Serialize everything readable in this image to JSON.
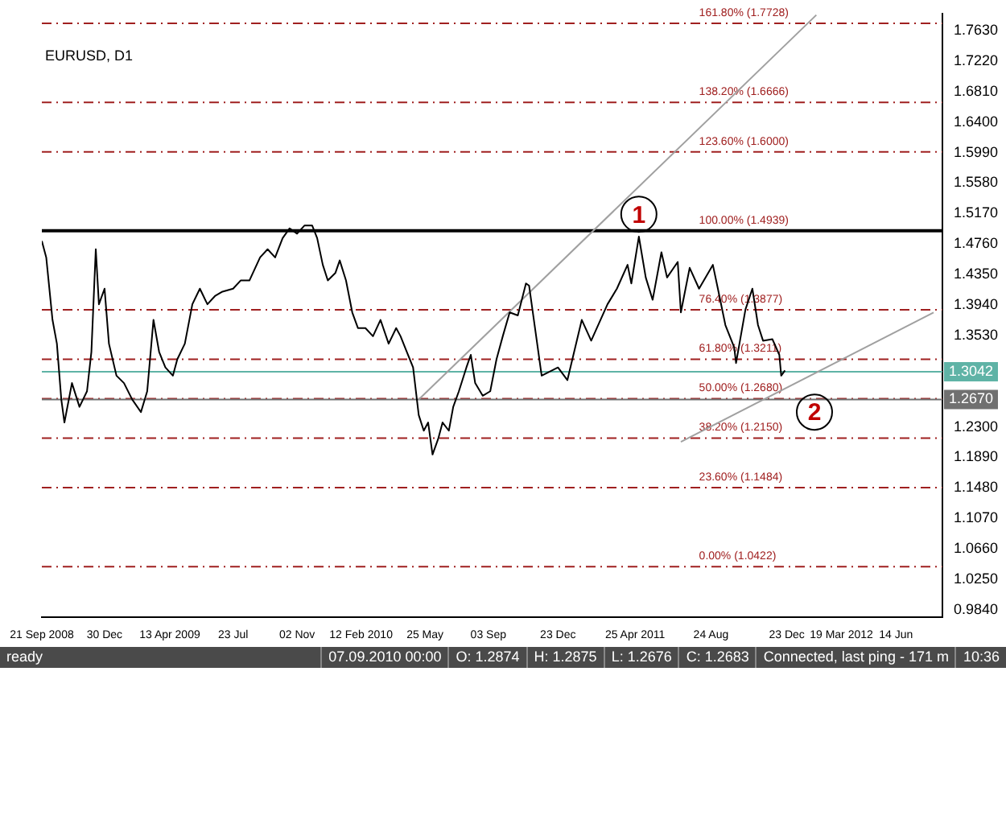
{
  "chart_data": {
    "type": "line",
    "title": "EURUSD, D1",
    "xlim": [
      "2008-09-21",
      "2012-08-27"
    ],
    "xticks": [
      {
        "value": "2008-09-21",
        "label": "21 Sep 2008"
      },
      {
        "value": "2008-12-30",
        "label": "30 Dec"
      },
      {
        "value": "2009-04-13",
        "label": "13 Apr 2009"
      },
      {
        "value": "2009-07-23",
        "label": "23 Jul"
      },
      {
        "value": "2009-11-02",
        "label": "02 Nov"
      },
      {
        "value": "2010-02-12",
        "label": "12 Feb 2010"
      },
      {
        "value": "2010-05-25",
        "label": "25 May"
      },
      {
        "value": "2010-09-03",
        "label": "03 Sep"
      },
      {
        "value": "2010-12-23",
        "label": "23 Dec"
      },
      {
        "value": "2011-04-25",
        "label": "25 Apr 2011"
      },
      {
        "value": "2011-08-24",
        "label": "24 Aug"
      },
      {
        "value": "2011-12-23",
        "label": "23 Dec"
      },
      {
        "value": "2012-03-19",
        "label": "19 Mar 2012"
      },
      {
        "value": "2012-06-14",
        "label": "14 Jun"
      }
    ],
    "ylim": [
      0.974,
      1.786
    ],
    "yticks": [
      {
        "value": 0.984,
        "label": "0.9840"
      },
      {
        "value": 1.025,
        "label": "1.0250"
      },
      {
        "value": 1.066,
        "label": "1.0660"
      },
      {
        "value": 1.107,
        "label": "1.1070"
      },
      {
        "value": 1.148,
        "label": "1.1480"
      },
      {
        "value": 1.189,
        "label": "1.1890"
      },
      {
        "value": 1.23,
        "label": "1.2300"
      },
      {
        "value": 1.353,
        "label": "1.3530"
      },
      {
        "value": 1.394,
        "label": "1.3940"
      },
      {
        "value": 1.435,
        "label": "1.4350"
      },
      {
        "value": 1.476,
        "label": "1.4760"
      },
      {
        "value": 1.517,
        "label": "1.5170"
      },
      {
        "value": 1.558,
        "label": "1.5580"
      },
      {
        "value": 1.599,
        "label": "1.5990"
      },
      {
        "value": 1.64,
        "label": "1.6400"
      },
      {
        "value": 1.681,
        "label": "1.6810"
      },
      {
        "value": 1.722,
        "label": "1.7220"
      },
      {
        "value": 1.763,
        "label": "1.7630"
      }
    ],
    "legend": false,
    "series": [
      {
        "type": "line",
        "color": "#000000",
        "x": [
          "2008-09-21",
          "2008-09-28",
          "2008-10-08",
          "2008-10-15",
          "2008-10-22",
          "2008-10-27",
          "2008-11-08",
          "2008-11-20",
          "2008-12-02",
          "2008-12-09",
          "2008-12-16",
          "2008-12-21",
          "2008-12-30",
          "2009-01-06",
          "2009-01-18",
          "2009-01-30",
          "2009-02-12",
          "2009-02-26",
          "2009-03-08",
          "2009-03-18",
          "2009-03-27",
          "2009-04-06",
          "2009-04-18",
          "2009-04-25",
          "2009-05-07",
          "2009-05-19",
          "2009-05-31",
          "2009-06-12",
          "2009-06-24",
          "2009-07-06",
          "2009-07-23",
          "2009-08-04",
          "2009-08-18",
          "2009-09-04",
          "2009-09-16",
          "2009-09-28",
          "2009-10-10",
          "2009-10-21",
          "2009-11-02",
          "2009-11-14",
          "2009-11-26",
          "2009-12-04",
          "2009-12-13",
          "2009-12-21",
          "2010-01-02",
          "2010-01-09",
          "2010-01-19",
          "2010-01-29",
          "2010-02-07",
          "2010-02-19",
          "2010-03-03",
          "2010-03-15",
          "2010-03-28",
          "2010-04-09",
          "2010-04-16",
          "2010-04-26",
          "2010-05-06",
          "2010-05-15",
          "2010-05-23",
          "2010-05-30",
          "2010-06-06",
          "2010-06-15",
          "2010-06-22",
          "2010-07-02",
          "2010-07-09",
          "2010-07-18",
          "2010-07-30",
          "2010-08-06",
          "2010-08-13",
          "2010-08-25",
          "2010-09-06",
          "2010-09-16",
          "2010-09-26",
          "2010-10-07",
          "2010-10-20",
          "2010-11-02",
          "2010-11-07",
          "2010-11-27",
          "2010-12-23",
          "2011-01-07",
          "2011-01-30",
          "2011-02-14",
          "2011-03-12",
          "2011-03-27",
          "2011-04-13",
          "2011-04-19",
          "2011-05-01",
          "2011-05-12",
          "2011-05-23",
          "2011-06-06",
          "2011-06-15",
          "2011-07-02",
          "2011-07-07",
          "2011-07-21",
          "2011-08-05",
          "2011-08-27",
          "2011-09-04",
          "2011-09-16",
          "2011-09-30",
          "2011-10-03",
          "2011-10-18",
          "2011-10-29",
          "2011-11-07",
          "2011-11-15",
          "2011-11-30",
          "2011-12-11",
          "2011-12-14",
          "2011-12-20"
        ],
        "values": [
          1.48,
          1.458,
          1.374,
          1.342,
          1.267,
          1.236,
          1.289,
          1.257,
          1.278,
          1.331,
          1.469,
          1.395,
          1.416,
          1.342,
          1.299,
          1.289,
          1.267,
          1.25,
          1.278,
          1.374,
          1.331,
          1.31,
          1.299,
          1.321,
          1.342,
          1.395,
          1.416,
          1.395,
          1.406,
          1.412,
          1.416,
          1.427,
          1.427,
          1.458,
          1.469,
          1.458,
          1.484,
          1.497,
          1.49,
          1.501,
          1.501,
          1.484,
          1.448,
          1.427,
          1.437,
          1.454,
          1.427,
          1.384,
          1.363,
          1.363,
          1.352,
          1.374,
          1.342,
          1.363,
          1.352,
          1.331,
          1.31,
          1.246,
          1.225,
          1.236,
          1.193,
          1.214,
          1.236,
          1.225,
          1.257,
          1.278,
          1.31,
          1.327,
          1.289,
          1.272,
          1.278,
          1.321,
          1.352,
          1.384,
          1.38,
          1.423,
          1.42,
          1.299,
          1.31,
          1.293,
          1.374,
          1.346,
          1.395,
          1.416,
          1.448,
          1.423,
          1.486,
          1.431,
          1.401,
          1.465,
          1.431,
          1.452,
          1.384,
          1.444,
          1.416,
          1.448,
          1.416,
          1.367,
          1.337,
          1.316,
          1.388,
          1.416,
          1.367,
          1.346,
          1.348,
          1.327,
          1.299,
          1.306
        ]
      },
      {
        "type": "line",
        "color": "#a0a0a0",
        "x": [
          "2010-05-15",
          "2012-02-08"
        ],
        "values": [
          1.267,
          1.784
        ]
      },
      {
        "type": "line",
        "color": "#a0a0a0",
        "x": [
          "2011-07-07",
          "2012-08-13"
        ],
        "values": [
          1.21,
          1.384
        ]
      }
    ],
    "ref_lines": [
      {
        "axis": "y",
        "value": 1.7728,
        "color": "#a02020",
        "line_style": "dashed"
      },
      {
        "axis": "y",
        "value": 1.6666,
        "color": "#a02020",
        "line_style": "dashed"
      },
      {
        "axis": "y",
        "value": 1.6,
        "color": "#a02020",
        "line_style": "dashed"
      },
      {
        "axis": "y",
        "value": 1.4939,
        "color": "#000000",
        "line_style": "solid"
      },
      {
        "axis": "y",
        "value": 1.3877,
        "color": "#a02020",
        "line_style": "dashed"
      },
      {
        "axis": "y",
        "value": 1.3211,
        "color": "#a02020",
        "line_style": "dashed"
      },
      {
        "axis": "y",
        "value": 1.268,
        "color": "#a02020",
        "line_style": "dashed"
      },
      {
        "axis": "y",
        "value": 1.215,
        "color": "#a02020",
        "line_style": "dashed"
      },
      {
        "axis": "y",
        "value": 1.1484,
        "color": "#a02020",
        "line_style": "dashed"
      },
      {
        "axis": "y",
        "value": 1.0422,
        "color": "#a02020",
        "line_style": "dashed"
      },
      {
        "axis": "y",
        "value": 1.3042,
        "label": "1.3042",
        "color": "#5fb3a6",
        "line_style": "solid"
      },
      {
        "axis": "y",
        "value": 1.267,
        "label": "1.2670",
        "color": "#707070",
        "line_style": "solid"
      }
    ],
    "annotations": [
      {
        "text": "161.80% (1.7728)",
        "x": "2011-08-05",
        "y": 1.7728
      },
      {
        "text": "138.20% (1.6666)",
        "x": "2011-08-05",
        "y": 1.6666
      },
      {
        "text": "123.60% (1.6000)",
        "x": "2011-08-05",
        "y": 1.6
      },
      {
        "text": "100.00% (1.4939)",
        "x": "2011-08-05",
        "y": 1.4939
      },
      {
        "text": "76.40% (1.3877)",
        "x": "2011-08-05",
        "y": 1.3877
      },
      {
        "text": "61.80% (1.3211)",
        "x": "2011-08-05",
        "y": 1.3211
      },
      {
        "text": "50.00% (1.2680)",
        "x": "2011-08-05",
        "y": 1.268
      },
      {
        "text": "38.20% (1.2150)",
        "x": "2011-08-05",
        "y": 1.215
      },
      {
        "text": "23.60% (1.1484)",
        "x": "2011-08-05",
        "y": 1.1484
      },
      {
        "text": "0.00% (1.0422)",
        "x": "2011-08-05",
        "y": 1.0422
      },
      {
        "text": "1",
        "x": "2011-05-01",
        "y": 1.516
      },
      {
        "text": "2",
        "x": "2012-02-05",
        "y": 1.25
      },
      "ready",
      "07.09.2010 00:00",
      "O: 1.2874",
      "H: 1.2875",
      "L: 1.2676",
      "C: 1.2683",
      "Connected, last ping - 171 m",
      "10:36"
    ]
  }
}
